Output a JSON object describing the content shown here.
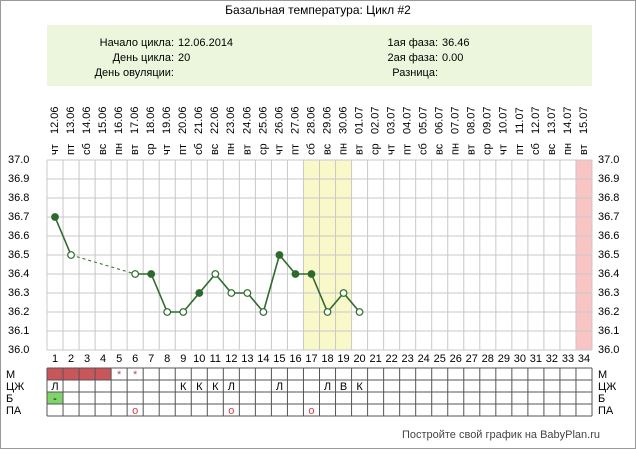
{
  "title": "Базальная температура: Цикл #2",
  "info": {
    "left": [
      {
        "label": "Начало цикла:",
        "value": "12.06.2014"
      },
      {
        "label": "День цикла:",
        "value": "20"
      },
      {
        "label": "День овуляции:"
      }
    ],
    "right": [
      {
        "label": "1ая фаза:",
        "value": "36.46"
      },
      {
        "label": "2ая фаза:",
        "value": "0.00"
      },
      {
        "label": "Разница:"
      }
    ]
  },
  "chart_data": {
    "type": "line",
    "categories": [
      "1",
      "2",
      "3",
      "4",
      "5",
      "6",
      "7",
      "8",
      "9",
      "10",
      "11",
      "12",
      "13",
      "14",
      "15",
      "16",
      "17",
      "18",
      "19",
      "20",
      "21",
      "22",
      "23",
      "24",
      "25",
      "26",
      "27",
      "28",
      "29",
      "30",
      "31",
      "32",
      "33",
      "34"
    ],
    "dates": [
      "12.06",
      "13.06",
      "14.06",
      "15.06",
      "16.06",
      "17.06",
      "18.06",
      "19.06",
      "20.06",
      "21.06",
      "22.06",
      "23.06",
      "24.06",
      "25.06",
      "26.06",
      "27.06",
      "28.06",
      "29.06",
      "30.06",
      "01.07",
      "02.07",
      "03.07",
      "04.07",
      "05.07",
      "06.07",
      "07.07",
      "08.07",
      "09.07",
      "10.07",
      "11.07",
      "12.07",
      "13.07",
      "14.07",
      "15.07"
    ],
    "weekdays": [
      "чт",
      "пт",
      "сб",
      "вс",
      "пн",
      "вт",
      "ср",
      "чт",
      "пт",
      "сб",
      "вс",
      "пн",
      "вт",
      "ср",
      "чт",
      "пт",
      "сб",
      "вс",
      "пн",
      "вт",
      "ср",
      "чт",
      "пт",
      "сб",
      "вс",
      "пн",
      "вт",
      "ср",
      "чт",
      "пт",
      "сб",
      "вс",
      "пн",
      "вт"
    ],
    "values": [
      36.7,
      36.5,
      null,
      null,
      null,
      36.4,
      36.4,
      36.2,
      36.2,
      36.3,
      36.4,
      36.3,
      36.3,
      36.2,
      36.5,
      36.4,
      36.4,
      36.2,
      36.3,
      36.2,
      null,
      null,
      null,
      null,
      null,
      null,
      null,
      null,
      null,
      null,
      null,
      null,
      null,
      null
    ],
    "marker_filled": [
      true,
      false,
      false,
      false,
      false,
      false,
      true,
      false,
      false,
      true,
      false,
      false,
      false,
      false,
      true,
      true,
      true,
      false,
      false,
      false,
      false,
      false,
      false,
      false,
      false,
      false,
      false,
      false,
      false,
      false,
      false,
      false,
      false,
      false
    ],
    "color": "#2d6a2d",
    "ylim": [
      36,
      37
    ],
    "yticks": [
      {
        "value": 37,
        "label": "37.0"
      },
      {
        "value": 36.9,
        "label": "36.9"
      },
      {
        "value": 36.8,
        "label": "36.8"
      },
      {
        "value": 36.7,
        "label": "36.7"
      },
      {
        "value": 36.6,
        "label": "36.6"
      },
      {
        "value": 36.5,
        "label": "36.5"
      },
      {
        "value": 36.4,
        "label": "36.4"
      },
      {
        "value": 36.3,
        "label": "36.3"
      },
      {
        "value": 36.2,
        "label": "36.2"
      },
      {
        "value": 36.1,
        "label": "36.1"
      },
      {
        "value": 36,
        "label": "36.0"
      }
    ],
    "grid": true,
    "highlights": [
      {
        "from": 17,
        "to": 19,
        "color": "#f8f8c8"
      },
      {
        "from": 34,
        "to": 34,
        "color": "#f8c4c4"
      }
    ]
  },
  "table": {
    "rows": [
      {
        "label": "М",
        "text_color": "#c0504d",
        "fill_color": "#c9565a",
        "fill_days": [
          1,
          2,
          3,
          4
        ],
        "cells": [
          null,
          null,
          null,
          null,
          "*",
          "*",
          null,
          null,
          null,
          null,
          null,
          null,
          null,
          null,
          null,
          null,
          null,
          null,
          null,
          null,
          null,
          null,
          null,
          null,
          null,
          null,
          null,
          null,
          null,
          null,
          null,
          null,
          null,
          null
        ]
      },
      {
        "label": "ЦЖ",
        "text_color": "#000",
        "cells": [
          "Л",
          null,
          null,
          null,
          null,
          null,
          null,
          null,
          "К",
          "К",
          "К",
          "Л",
          null,
          null,
          "Л",
          null,
          null,
          "Л",
          "В",
          "К",
          null,
          null,
          null,
          null,
          null,
          null,
          null,
          null,
          null,
          null,
          null,
          null,
          null,
          null
        ]
      },
      {
        "label": "Б",
        "text_color": "#000",
        "fill_color": "#7fd36b",
        "fill_days": [
          1
        ],
        "cells": [
          "-",
          null,
          null,
          null,
          null,
          null,
          null,
          null,
          null,
          null,
          null,
          null,
          null,
          null,
          null,
          null,
          null,
          null,
          null,
          null,
          null,
          null,
          null,
          null,
          null,
          null,
          null,
          null,
          null,
          null,
          null,
          null,
          null,
          null
        ]
      },
      {
        "label": "ПА",
        "text_color": "#d04040",
        "cells": [
          null,
          null,
          null,
          null,
          null,
          "o",
          null,
          null,
          null,
          null,
          null,
          "o",
          null,
          null,
          null,
          null,
          "o",
          null,
          null,
          null,
          null,
          null,
          null,
          null,
          null,
          null,
          null,
          null,
          null,
          null,
          null,
          null,
          null,
          null
        ]
      }
    ]
  },
  "footer": "Постройте свой график на BabyPlan.ru"
}
